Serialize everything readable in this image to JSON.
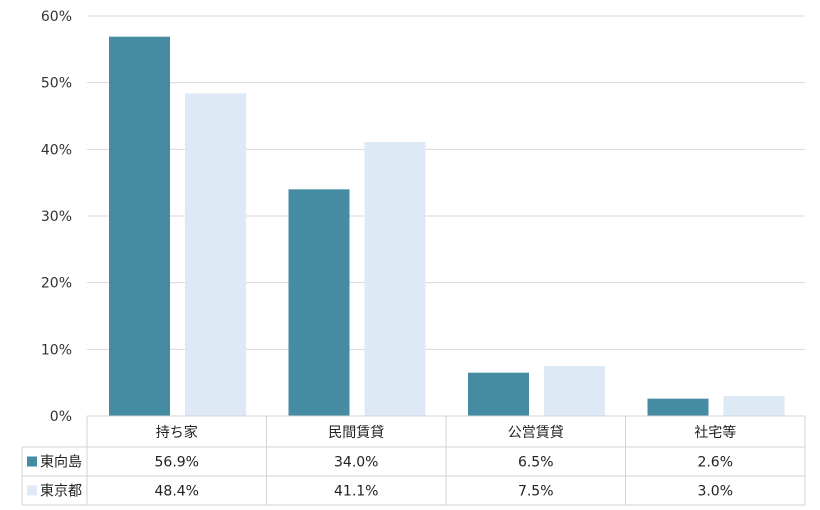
{
  "chart_data": {
    "type": "bar",
    "categories": [
      "持ち家",
      "民間賃貸",
      "公営賃貸",
      "社宅等"
    ],
    "series": [
      {
        "name": "東向島",
        "color": "#458ca3",
        "values": [
          56.9,
          34.0,
          6.5,
          2.6
        ],
        "labels": [
          "56.9%",
          "34.0%",
          "6.5%",
          "2.6%"
        ]
      },
      {
        "name": "東京都",
        "color": "#dde9f5",
        "values": [
          48.4,
          41.1,
          7.5,
          3.0
        ],
        "labels": [
          "48.4%",
          "41.1%",
          "7.5%",
          "3.0%"
        ]
      }
    ],
    "ylim": [
      0,
      60
    ],
    "yticks": [
      0,
      10,
      20,
      30,
      40,
      50,
      60
    ],
    "ytick_labels": [
      "0%",
      "10%",
      "20%",
      "30%",
      "40%",
      "50%",
      "60%"
    ],
    "grid": true,
    "legend": "data-table-left"
  }
}
